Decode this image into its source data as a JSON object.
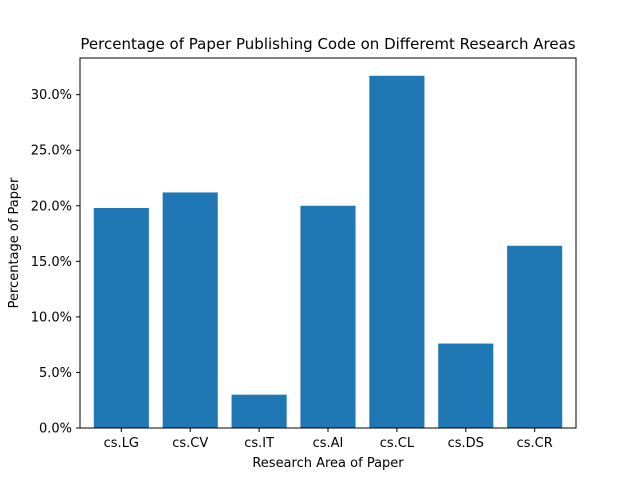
{
  "chart_data": {
    "type": "bar",
    "title": "Percentage of Paper Publishing Code on Differemt Research Areas",
    "xlabel": "Research Area of Paper",
    "ylabel": "Percentage of Paper",
    "categories": [
      "cs.LG",
      "cs.CV",
      "cs.IT",
      "cs.AI",
      "cs.CL",
      "cs.DS",
      "cs.CR"
    ],
    "values": [
      19.8,
      21.2,
      3.0,
      20.0,
      31.7,
      7.6,
      16.4
    ],
    "ylim": [
      0,
      33.3
    ],
    "yticks": [
      0,
      5,
      10,
      15,
      20,
      25,
      30
    ],
    "ytick_labels": [
      "0.0%",
      "5.0%",
      "10.0%",
      "15.0%",
      "20.0%",
      "25.0%",
      "30.0%"
    ],
    "bar_color": "#1f77b4",
    "grid": false,
    "legend": false
  }
}
